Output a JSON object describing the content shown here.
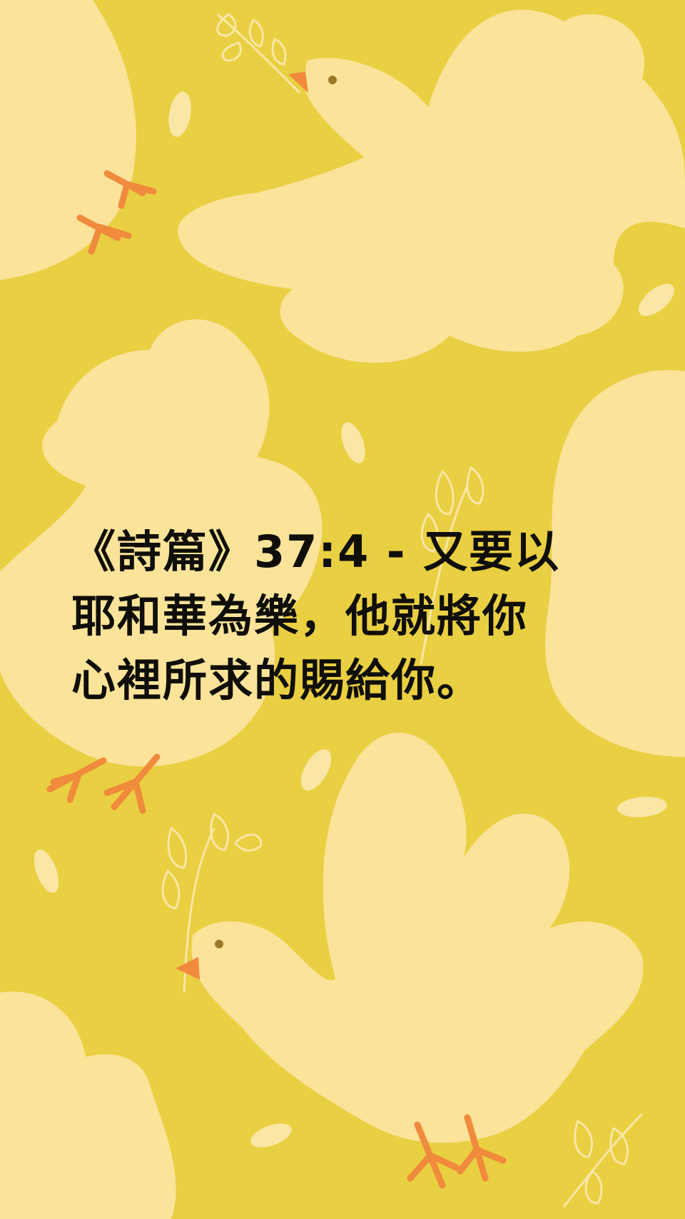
{
  "verse": {
    "lines": [
      "《詩篇》37:4 - 又要以",
      "耶和華為樂，他就將你",
      "心裡所求的賜給你。"
    ]
  },
  "background": {
    "base_color": "#e9cf42",
    "bird_color": "#fbe39a",
    "beak_color": "#f08a3c",
    "leaf_color": "#fae7a6",
    "motifs": [
      "dove-illustration",
      "olive-branch-icon",
      "leaf-icon"
    ]
  }
}
